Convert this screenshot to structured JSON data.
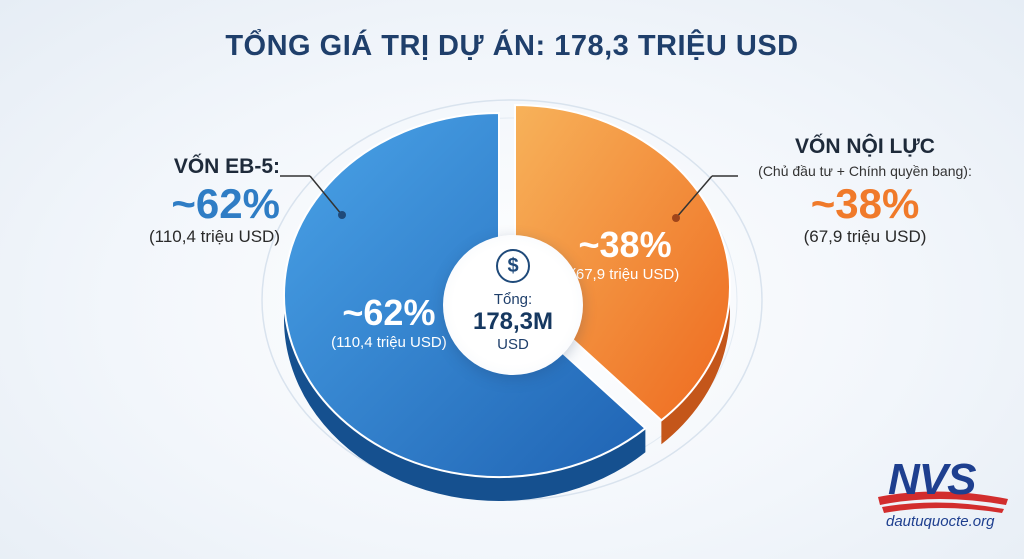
{
  "title": "TỔNG GIÁ TRỊ DỰ ÁN: 178,3 TRIỆU USD",
  "chart_data": {
    "type": "pie",
    "title": "TỔNG GIÁ TRỊ DỰ ÁN: 178,3 TRIỆU USD",
    "unit": "triệu USD",
    "slices": [
      {
        "name": "VỐN EB-5:",
        "percent_label": "~62%",
        "amount_label": "(110,4 triệu USD)",
        "value": 110.4,
        "color": "#2f7dc5"
      },
      {
        "name": "VỐN NỘI LỰC",
        "note": "(Chủ đầu tư + Chính quyền bang):",
        "percent_label": "~38%",
        "amount_label": "(67,9 triệu USD)",
        "value": 67.9,
        "color": "#f28a35"
      }
    ],
    "total": {
      "label": "Tổng:",
      "value": "178,3M",
      "unit": "USD",
      "icon": "dollar-circle-icon"
    }
  },
  "logo": {
    "text": "NVS",
    "site": "dautuquocte.org"
  }
}
